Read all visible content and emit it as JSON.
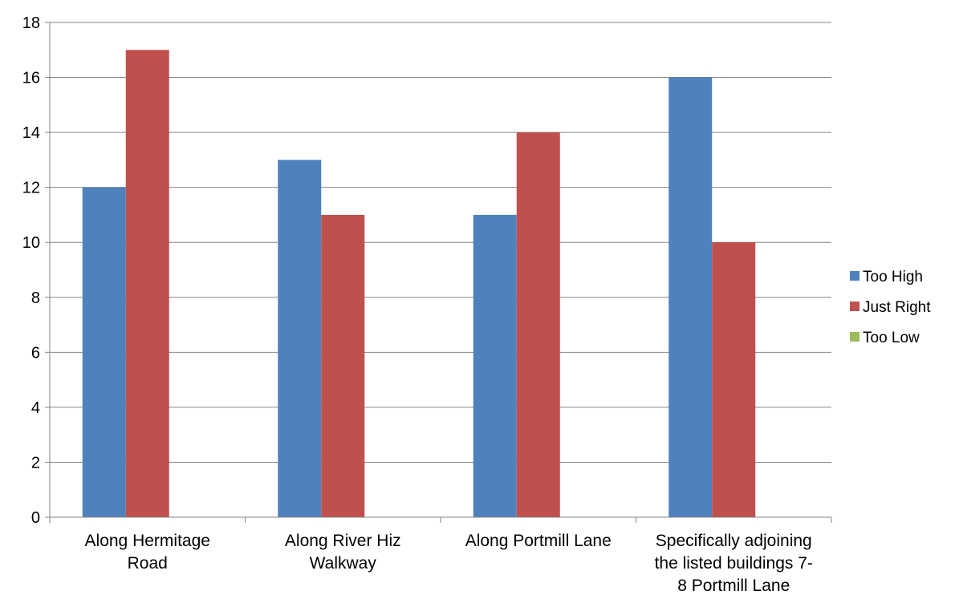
{
  "chart_data": {
    "type": "bar",
    "title": "",
    "xlabel": "",
    "ylabel": "",
    "ylim": [
      0,
      18
    ],
    "yticks": [
      0,
      2,
      4,
      6,
      8,
      10,
      12,
      14,
      16,
      18
    ],
    "grid": true,
    "legend_position": "right",
    "categories": [
      [
        "Along Hermitage",
        "Road"
      ],
      [
        "Along River Hiz",
        "Walkway"
      ],
      [
        "Along Portmill Lane"
      ],
      [
        "Specifically adjoining",
        "the listed buildings 7-",
        "8 Portmill Lane"
      ]
    ],
    "series": [
      {
        "name": "Too High",
        "color": "#4F81BD",
        "values": [
          12,
          13,
          11,
          16
        ]
      },
      {
        "name": "Just Right",
        "color": "#C0504D",
        "values": [
          17,
          11,
          14,
          10
        ]
      },
      {
        "name": "Too Low",
        "color": "#9BBB59",
        "values": [
          0,
          0,
          0,
          0
        ]
      }
    ]
  }
}
